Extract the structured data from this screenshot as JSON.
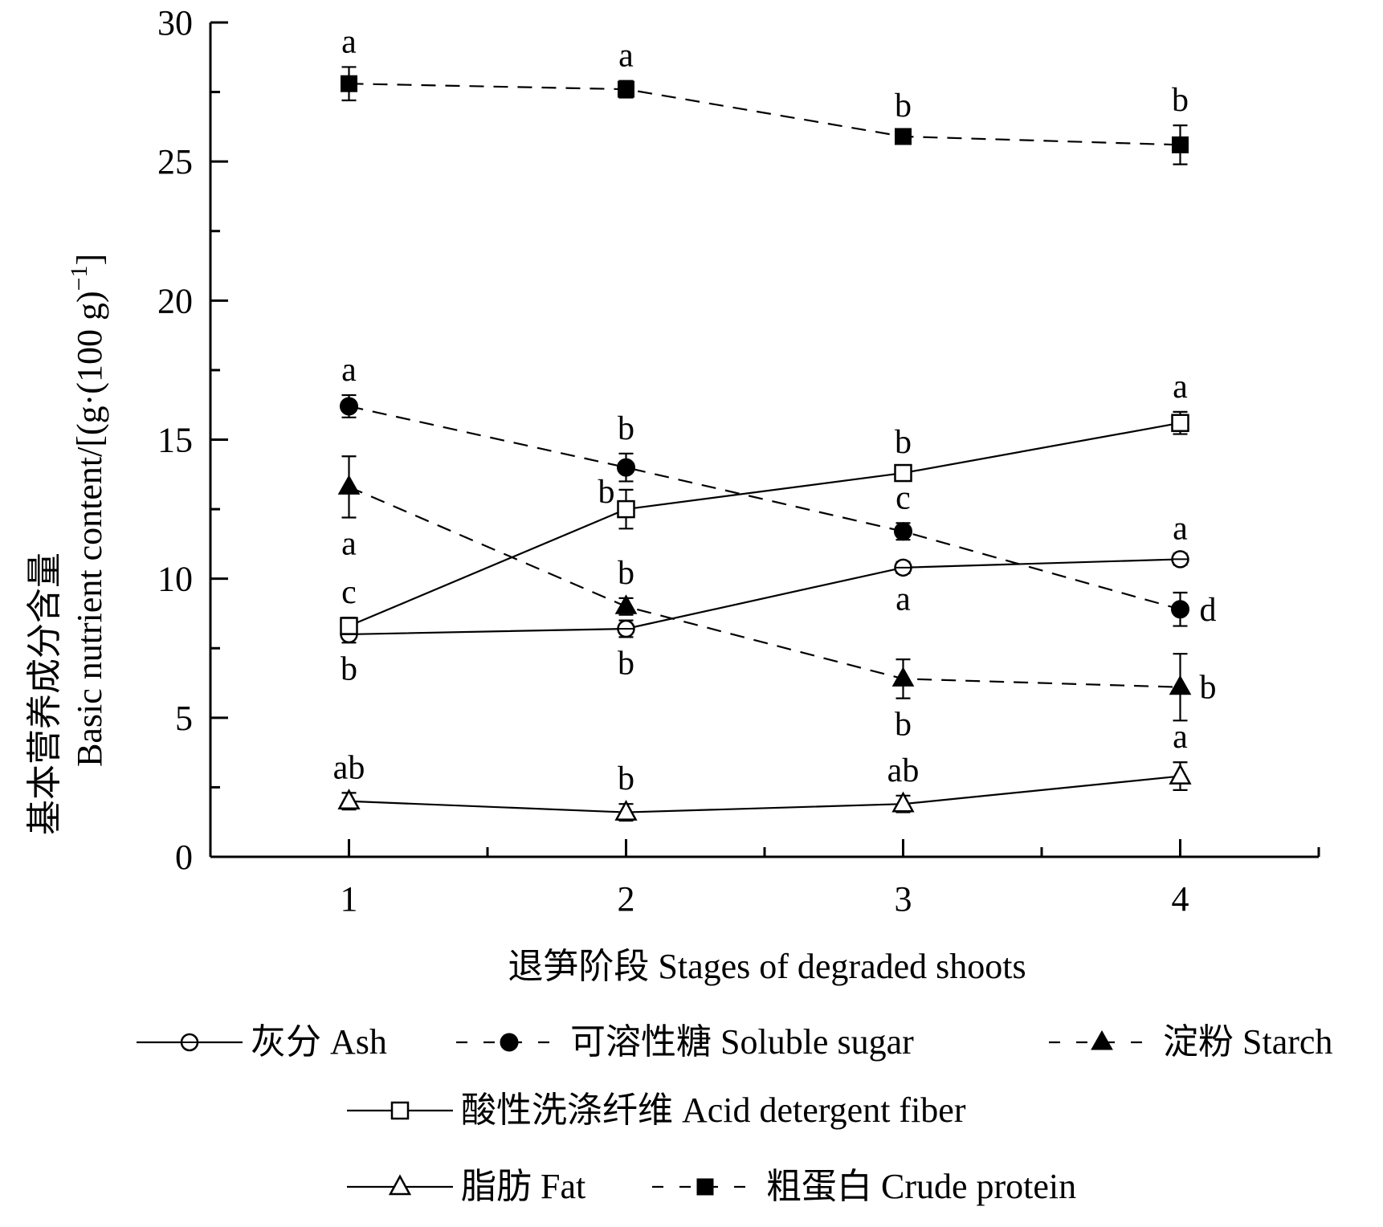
{
  "chart_data": {
    "type": "line",
    "title": "",
    "xlabel": "退笋阶段  Stages of degraded shoots",
    "ylabel": "基本营养成分含量",
    "ylabel_en": "Basic nutrient content/[(g·(100 g)",
    "ylabel_sup": "−1",
    "ylabel_close": "]",
    "ylim": [
      0,
      30
    ],
    "yticks": [
      "0",
      "5",
      "10",
      "15",
      "20",
      "25",
      "30"
    ],
    "xlim": [
      0.5,
      4.5
    ],
    "x": [
      1,
      2,
      3,
      4
    ],
    "xticks": [
      "1",
      "2",
      "3",
      "4"
    ],
    "grid": false,
    "legend_position": "bottom",
    "series": [
      {
        "name": "灰分  Ash",
        "marker": "circle-open-cross",
        "line": "solid",
        "values": [
          8.0,
          8.2,
          10.4,
          10.7
        ],
        "errors": [
          0.3,
          0.3,
          0.2,
          0.2
        ],
        "letters": [
          "b",
          "b",
          "a",
          "a"
        ],
        "letter_pos": [
          "below",
          "below",
          "below",
          "above"
        ]
      },
      {
        "name": "可溶性糖  Soluble sugar",
        "marker": "circle-filled",
        "line": "dashed",
        "values": [
          16.2,
          14.0,
          11.7,
          8.9
        ],
        "errors": [
          0.4,
          0.5,
          0.3,
          0.6
        ],
        "letters": [
          "a",
          "b",
          "c",
          "d"
        ],
        "letter_pos": [
          "above",
          "above",
          "above",
          "right"
        ]
      },
      {
        "name": "淀粉  Starch",
        "marker": "triangle-filled",
        "line": "dashed",
        "values": [
          13.3,
          9.0,
          6.4,
          6.1
        ],
        "errors": [
          1.1,
          0.3,
          0.7,
          1.2
        ],
        "letters": [
          "a",
          "b",
          "b",
          "b"
        ],
        "letter_pos": [
          "below",
          "above",
          "below",
          "right"
        ]
      },
      {
        "name": "酸性洗涤纤维  Acid detergent fiber",
        "marker": "square-open",
        "line": "solid",
        "values": [
          8.3,
          12.5,
          13.8,
          15.6
        ],
        "errors": [
          0.3,
          0.7,
          0.2,
          0.4
        ],
        "letters": [
          "c",
          "b",
          "b",
          "a"
        ],
        "letter_pos": [
          "above",
          "left",
          "above",
          "above"
        ]
      },
      {
        "name": "脂肪  Fat",
        "marker": "triangle-open",
        "line": "solid",
        "values": [
          2.0,
          1.6,
          1.9,
          2.9
        ],
        "errors": [
          0.3,
          0.3,
          0.3,
          0.5
        ],
        "letters": [
          "ab",
          "b",
          "ab",
          "a"
        ],
        "letter_pos": [
          "above",
          "above",
          "above",
          "above"
        ]
      },
      {
        "name": "粗蛋白  Crude protein",
        "marker": "square-filled",
        "line": "dashed",
        "values": [
          27.8,
          27.6,
          25.9,
          25.6
        ],
        "errors": [
          0.6,
          0.3,
          0.2,
          0.7
        ],
        "letters": [
          "a",
          "a",
          "b",
          "b"
        ],
        "letter_pos": [
          "above",
          "above",
          "above",
          "above"
        ]
      }
    ]
  }
}
